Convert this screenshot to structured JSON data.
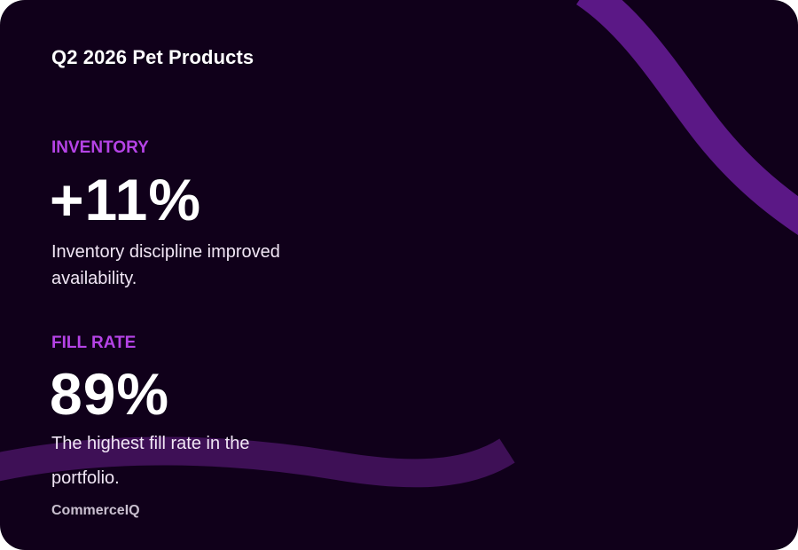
{
  "card": {
    "title": "Q2 2026 Pet Products",
    "metrics": [
      {
        "label": "INVENTORY",
        "value": "+11%",
        "description_line1": "Inventory discipline improved",
        "description_line2": "availability."
      },
      {
        "label": "FILL RATE",
        "value": "89%",
        "description_line1": "The highest fill rate in the",
        "description_line2": "portfolio."
      }
    ],
    "brand": "CommerceIQ"
  },
  "colors": {
    "background": "#10001a",
    "accent_label": "#b543e6",
    "decor_top": "#5b1886",
    "decor_bottom": "#3e1056"
  }
}
